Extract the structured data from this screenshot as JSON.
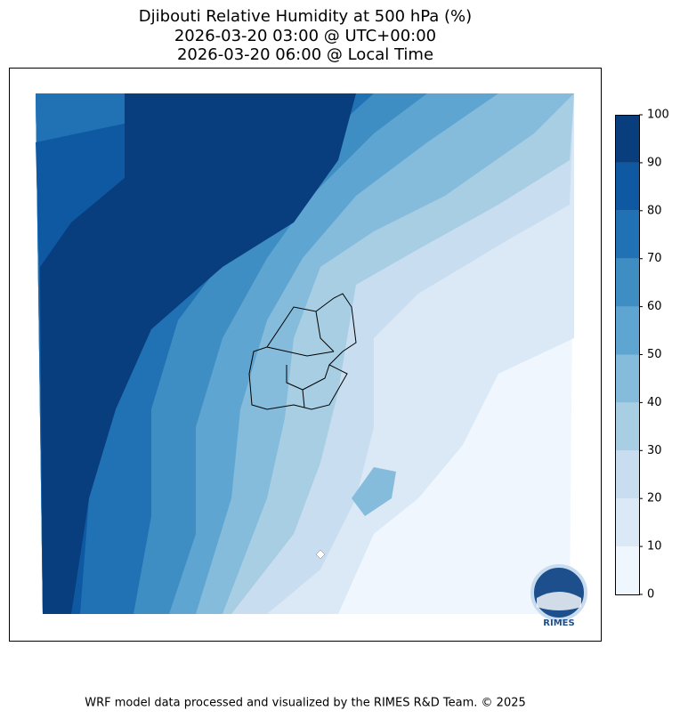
{
  "title": [
    "Djibouti Relative Humidity at 500 hPa (%)",
    "2026-03-20 03:00 @ UTC+00:00",
    "2026-03-20 06:00 @ Local Time"
  ],
  "colorbar": {
    "lim": [
      0,
      100
    ],
    "ticks": [
      0,
      10,
      20,
      30,
      40,
      50,
      60,
      70,
      80,
      90,
      100
    ],
    "colors": [
      "#f0f6fd",
      "#dbe9f6",
      "#c9ddf0",
      "#a8cee4",
      "#85bcdc",
      "#5ea5d1",
      "#3e8ec4",
      "#2171b5",
      "#0f58a2",
      "#083d7e"
    ]
  },
  "logo": "RIMES",
  "footer": "WRF model data processed and visualized by the RIMES R&D Team. © 2025"
}
